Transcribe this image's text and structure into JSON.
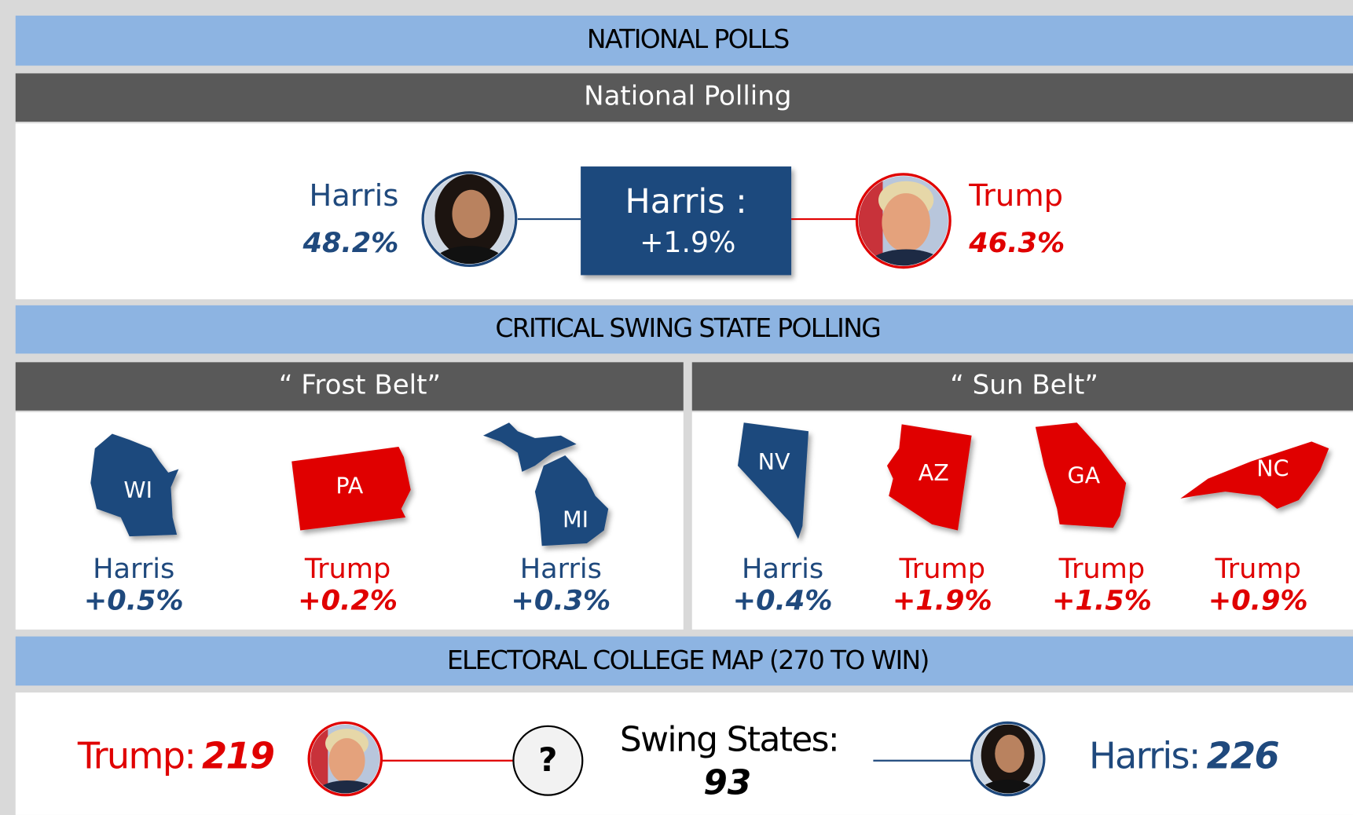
{
  "sections": {
    "national": {
      "banner": "NATIONAL POLLS",
      "header": "National Polling",
      "left": {
        "name": "Harris",
        "value": "48.2%"
      },
      "lead": {
        "name": "Harris :",
        "margin": "+1.9%"
      },
      "right": {
        "name": "Trump",
        "value": "46.3%"
      }
    },
    "swing": {
      "banner": "CRITICAL SWING STATE POLLING",
      "groups": [
        {
          "title": "“ Frost Belt”",
          "states": [
            {
              "abbr": "WI",
              "leader": "Harris",
              "margin": "+0.5%"
            },
            {
              "abbr": "PA",
              "leader": "Trump",
              "margin": "+0.2%"
            },
            {
              "abbr": "MI",
              "leader": "Harris",
              "margin": "+0.3%"
            }
          ]
        },
        {
          "title": "“ Sun Belt”",
          "states": [
            {
              "abbr": "NV",
              "leader": "Harris",
              "margin": "+0.4%"
            },
            {
              "abbr": "AZ",
              "leader": "Trump",
              "margin": "+1.9%"
            },
            {
              "abbr": "GA",
              "leader": "Trump",
              "margin": "+1.5%"
            },
            {
              "abbr": "NC",
              "leader": "Trump",
              "margin": "+0.9%"
            }
          ]
        }
      ]
    },
    "electoral": {
      "banner": "ELECTORAL COLLEGE MAP (270 TO WIN)",
      "trump": {
        "label": "Trump:",
        "votes": 219
      },
      "question": "?",
      "swing": {
        "label": "Swing States:",
        "votes": 93
      },
      "harris": {
        "label": "Harris:",
        "votes": 226
      }
    }
  }
}
